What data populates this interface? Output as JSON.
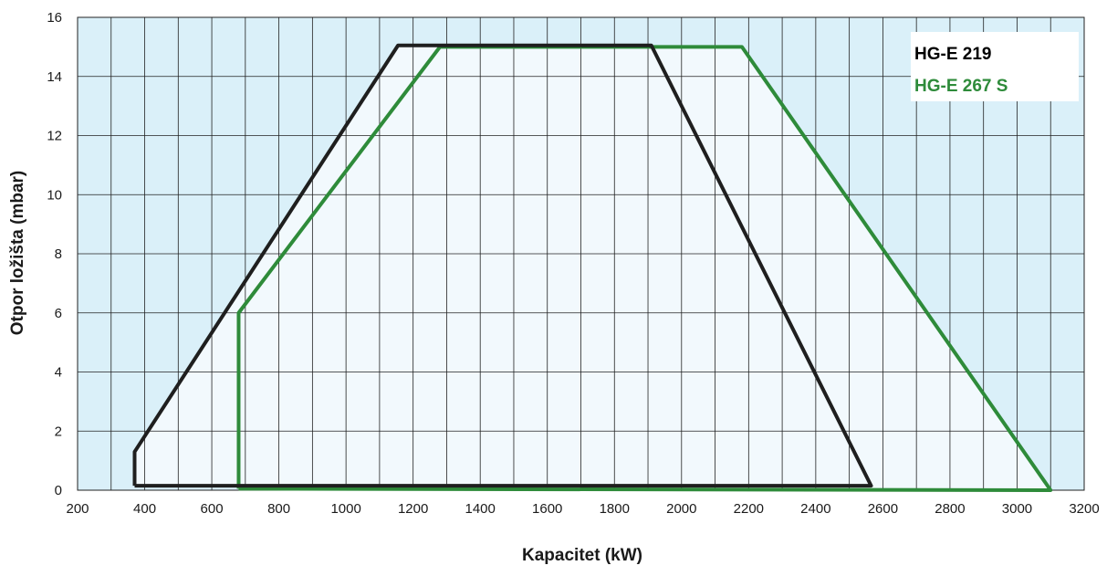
{
  "chart_data": {
    "type": "area",
    "xlabel": "Kapacitet (kW)",
    "ylabel": "Otpor ložišta (mbar)",
    "xlim": [
      200,
      3200
    ],
    "ylim": [
      0,
      16
    ],
    "x_ticks": [
      200,
      400,
      600,
      800,
      1000,
      1200,
      1400,
      1600,
      1800,
      2000,
      2200,
      2400,
      2600,
      2800,
      3000,
      3200
    ],
    "y_ticks": [
      0,
      2,
      4,
      6,
      8,
      10,
      12,
      14,
      16
    ],
    "x_minor_step": 100,
    "y_minor_step": 2,
    "grid": true,
    "legend_position": "top-right",
    "colors": {
      "background_band": "#daf0f9",
      "region_fill": "#f2f9fd",
      "grid": "#222222"
    },
    "series": [
      {
        "name": "HG-E 219",
        "color": "#1f1f1f",
        "x": [
          370,
          370,
          1155,
          1910,
          2565,
          370
        ],
        "y": [
          0.15,
          1.3,
          15.05,
          15.05,
          0.15,
          0.15
        ]
      },
      {
        "name": "HG-E 267 S",
        "color": "#2e8b3a",
        "x": [
          680,
          680,
          1280,
          2180,
          3100,
          680
        ],
        "y": [
          0.05,
          6.0,
          15.0,
          15.0,
          0.0,
          0.05
        ]
      }
    ]
  }
}
